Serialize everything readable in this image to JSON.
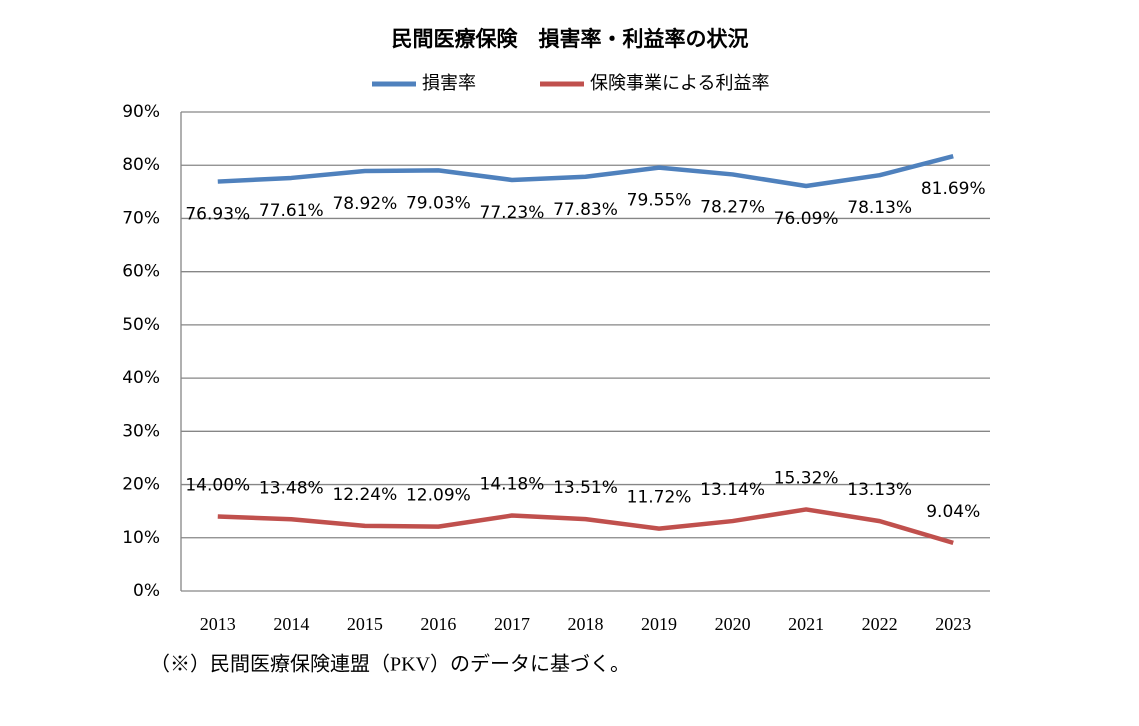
{
  "chart_data": {
    "type": "line",
    "title": "民間医療保険　損害率・利益率の状況",
    "categories": [
      "2013",
      "2014",
      "2015",
      "2016",
      "2017",
      "2018",
      "2019",
      "2020",
      "2021",
      "2022",
      "2023"
    ],
    "series": [
      {
        "name": "損害率",
        "color": "#4f81bd",
        "values": [
          76.93,
          77.61,
          78.92,
          79.03,
          77.23,
          77.83,
          79.55,
          78.27,
          76.09,
          78.13,
          81.69
        ],
        "value_labels": [
          "76.93%",
          "77.61%",
          "78.92%",
          "79.03%",
          "77.23%",
          "77.83%",
          "79.55%",
          "78.27%",
          "76.09%",
          "78.13%",
          "81.69%"
        ]
      },
      {
        "name": "保険事業による利益率",
        "color": "#c0504d",
        "values": [
          14.0,
          13.48,
          12.24,
          12.09,
          14.18,
          13.51,
          11.72,
          13.14,
          15.32,
          13.13,
          9.04
        ],
        "value_labels": [
          "14.00%",
          "13.48%",
          "12.24%",
          "12.09%",
          "14.18%",
          "13.51%",
          "11.72%",
          "13.14%",
          "15.32%",
          "13.13%",
          "9.04%"
        ]
      }
    ],
    "ylim": [
      0,
      90
    ],
    "yticks": [
      {
        "value": 0,
        "label": "0%"
      },
      {
        "value": 10,
        "label": "10%"
      },
      {
        "value": 20,
        "label": "20%"
      },
      {
        "value": 30,
        "label": "30%"
      },
      {
        "value": 40,
        "label": "40%"
      },
      {
        "value": 50,
        "label": "50%"
      },
      {
        "value": 60,
        "label": "60%"
      },
      {
        "value": 70,
        "label": "70%"
      },
      {
        "value": 80,
        "label": "80%"
      },
      {
        "value": 90,
        "label": "90%"
      }
    ],
    "grid": true,
    "legend": "top",
    "note": "（※）民間医療保険連盟（PKV）のデータに基づく。"
  }
}
